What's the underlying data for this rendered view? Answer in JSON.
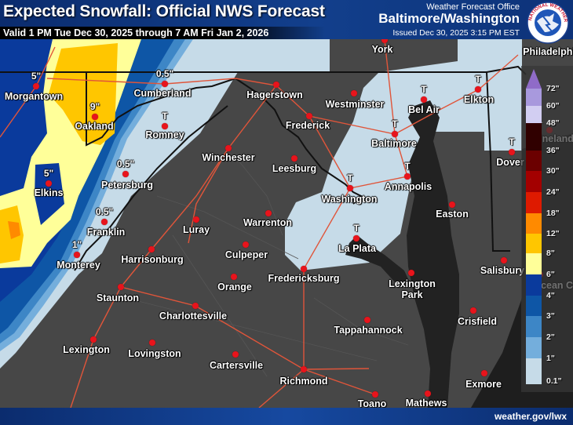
{
  "header": {
    "title": "Expected Snowfall: Official NWS Forecast",
    "valid": "Valid 1 PM Tue Dec 30, 2025 through 7 AM Fri Jan 2, 2026",
    "office_label": "Weather Forecast Office",
    "office": "Baltimore/Washington",
    "issued": "Issued Dec 30, 2025 3:15 PM EST",
    "logo_text": "NATIONAL WEATHER SERVICE"
  },
  "footer": {
    "url": "weather.gov/lwx"
  },
  "colors": {
    "background_no_snow": "#474747",
    "water": "#1e1e1e",
    "roads": "#e0553a",
    "city_dot": "#e8141c",
    "header": "#0b2c6e"
  },
  "cities": [
    {
      "name": "York",
      "amount": ""
    },
    {
      "name": "Philadelphia",
      "amount": ""
    },
    {
      "name": "Morgantown",
      "amount": "5\""
    },
    {
      "name": "Cumberland",
      "amount": "0.5\""
    },
    {
      "name": "Hagerstown",
      "amount": ""
    },
    {
      "name": "Westminster",
      "amount": ""
    },
    {
      "name": "Bel Air",
      "amount": "T"
    },
    {
      "name": "Elkton",
      "amount": "T"
    },
    {
      "name": "Oakland",
      "amount": "9\""
    },
    {
      "name": "Romney",
      "amount": "T"
    },
    {
      "name": "Frederick",
      "amount": ""
    },
    {
      "name": "Baltimore",
      "amount": "T"
    },
    {
      "name": "Vineland",
      "amount": "T"
    },
    {
      "name": "Dover",
      "amount": "T"
    },
    {
      "name": "Winchester",
      "amount": ""
    },
    {
      "name": "Leesburg",
      "amount": ""
    },
    {
      "name": "Annapolis",
      "amount": "T"
    },
    {
      "name": "Washington",
      "amount": "T"
    },
    {
      "name": "Elkins",
      "amount": "5\""
    },
    {
      "name": "Petersburg",
      "amount": "0.5\""
    },
    {
      "name": "Franklin",
      "amount": "0.5\""
    },
    {
      "name": "Luray",
      "amount": ""
    },
    {
      "name": "Warrenton",
      "amount": ""
    },
    {
      "name": "Easton",
      "amount": ""
    },
    {
      "name": "La Plata",
      "amount": "T"
    },
    {
      "name": "Monterey",
      "amount": "1\""
    },
    {
      "name": "Harrisonburg",
      "amount": ""
    },
    {
      "name": "Culpeper",
      "amount": ""
    },
    {
      "name": "Salisbury",
      "amount": ""
    },
    {
      "name": "Ocean City",
      "amount": ""
    },
    {
      "name": "Lexington Park",
      "amount": ""
    },
    {
      "name": "Fredericksburg",
      "amount": ""
    },
    {
      "name": "Orange",
      "amount": ""
    },
    {
      "name": "Staunton",
      "amount": ""
    },
    {
      "name": "Charlottesville",
      "amount": ""
    },
    {
      "name": "Crisfield",
      "amount": ""
    },
    {
      "name": "Tappahannock",
      "amount": ""
    },
    {
      "name": "Lexington",
      "amount": ""
    },
    {
      "name": "Lovingston",
      "amount": ""
    },
    {
      "name": "Cartersville",
      "amount": ""
    },
    {
      "name": "Richmond",
      "amount": ""
    },
    {
      "name": "Exmore",
      "amount": ""
    },
    {
      "name": "Toano",
      "amount": ""
    },
    {
      "name": "Mathews",
      "amount": ""
    }
  ],
  "legend": {
    "top_color": "#8f6bc8",
    "bins": [
      {
        "label": "72\"",
        "color": "#a899dd"
      },
      {
        "label": "60\"",
        "color": "#d2cef2"
      },
      {
        "label": "48\"",
        "color": "#300000"
      },
      {
        "label": "36\"",
        "color": "#6b0000"
      },
      {
        "label": "30\"",
        "color": "#a30000"
      },
      {
        "label": "24\"",
        "color": "#de1a00"
      },
      {
        "label": "18\"",
        "color": "#ff8a00"
      },
      {
        "label": "12\"",
        "color": "#ffc600"
      },
      {
        "label": "8\"",
        "color": "#ffff99"
      },
      {
        "label": "6\"",
        "color": "#0a3a9c"
      },
      {
        "label": "4\"",
        "color": "#0e56a6"
      },
      {
        "label": "3\"",
        "color": "#3d86c6"
      },
      {
        "label": "2\"",
        "color": "#74aedc"
      },
      {
        "label": "1\"",
        "color": "#c6dbe8"
      }
    ],
    "bottom_label": "0.1\""
  }
}
